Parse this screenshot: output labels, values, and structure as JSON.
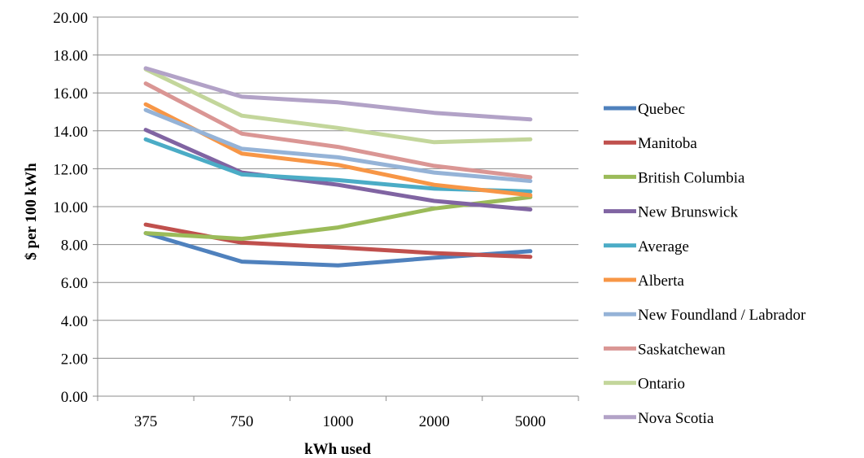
{
  "chart_data": {
    "type": "line",
    "title": "",
    "xlabel": "kWh used",
    "ylabel": "$ per 100 kWh",
    "categories": [
      "375",
      "750",
      "1000",
      "2000",
      "5000"
    ],
    "ylim": [
      0,
      20
    ],
    "ytick_labels": [
      "0.00",
      "2.00",
      "4.00",
      "6.00",
      "8.00",
      "10.00",
      "12.00",
      "14.00",
      "16.00",
      "18.00",
      "20.00"
    ],
    "grid": true,
    "legend_position": "right",
    "series": [
      {
        "name": "Quebec",
        "color": "#4F81BD",
        "values": [
          8.6,
          7.1,
          6.9,
          7.3,
          7.65
        ]
      },
      {
        "name": "Manitoba",
        "color": "#C0504D",
        "values": [
          9.05,
          8.1,
          7.85,
          7.55,
          7.35
        ]
      },
      {
        "name": "British Columbia",
        "color": "#9BBB59",
        "values": [
          8.6,
          8.3,
          8.9,
          9.9,
          10.5
        ]
      },
      {
        "name": "New Brunswick",
        "color": "#8064A2",
        "values": [
          14.05,
          11.8,
          11.15,
          10.3,
          9.85
        ]
      },
      {
        "name": "Average",
        "color": "#4BACC6",
        "values": [
          13.55,
          11.7,
          11.4,
          10.95,
          10.8
        ]
      },
      {
        "name": "Alberta",
        "color": "#F79646",
        "values": [
          15.4,
          12.8,
          12.2,
          11.15,
          10.6
        ]
      },
      {
        "name": "New Foundland / Labrador",
        "color": "#95B3D7",
        "values": [
          15.1,
          13.05,
          12.6,
          11.8,
          11.35
        ]
      },
      {
        "name": "Saskatchewan",
        "color": "#DA9694",
        "values": [
          16.5,
          13.85,
          13.15,
          12.15,
          11.55
        ]
      },
      {
        "name": "Ontario",
        "color": "#C3D69B",
        "values": [
          17.25,
          14.8,
          14.15,
          13.4,
          13.55
        ]
      },
      {
        "name": "Nova Scotia",
        "color": "#B2A2C7",
        "values": [
          17.3,
          15.8,
          15.5,
          14.95,
          14.6
        ]
      }
    ]
  }
}
